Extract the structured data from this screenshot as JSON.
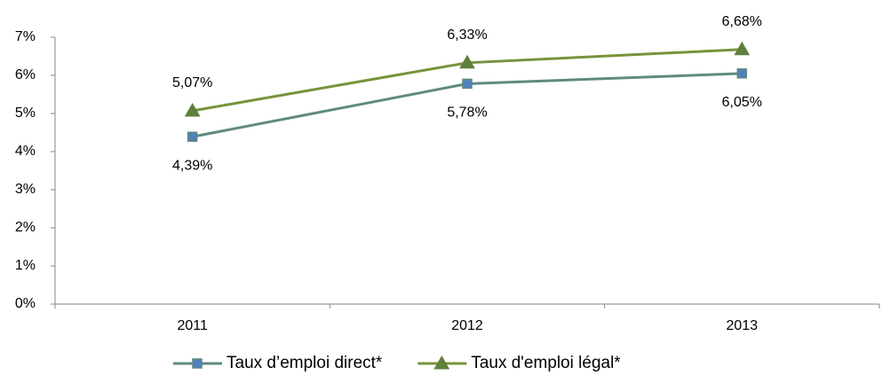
{
  "chart_data": {
    "type": "line",
    "categories": [
      "2011",
      "2012",
      "2013"
    ],
    "series": [
      {
        "name": "Taux d’emploi direct*",
        "color": "#5f8a80",
        "marker_color": "#4f81bd",
        "marker": "square",
        "label_position": "below",
        "values": [
          4.39,
          5.78,
          6.05
        ],
        "value_labels": [
          "4,39%",
          "5,78%",
          "6,05%"
        ]
      },
      {
        "name": "Taux d'emploi légal*",
        "color": "#77933c",
        "marker_color": "#5f7f3a",
        "marker": "triangle",
        "label_position": "above",
        "values": [
          5.07,
          6.33,
          6.68
        ],
        "value_labels": [
          "5,07%",
          "6,33%",
          "6,68%"
        ]
      }
    ],
    "ylim": [
      0,
      7
    ],
    "yticks": [
      {
        "value": 0,
        "label": "0%"
      },
      {
        "value": 1,
        "label": "1%"
      },
      {
        "value": 2,
        "label": "2%"
      },
      {
        "value": 3,
        "label": "3%"
      },
      {
        "value": 4,
        "label": "4%"
      },
      {
        "value": 5,
        "label": "5%"
      },
      {
        "value": 6,
        "label": "6%"
      },
      {
        "value": 7,
        "label": "7%"
      }
    ],
    "grid": false,
    "legend": "bottom"
  }
}
